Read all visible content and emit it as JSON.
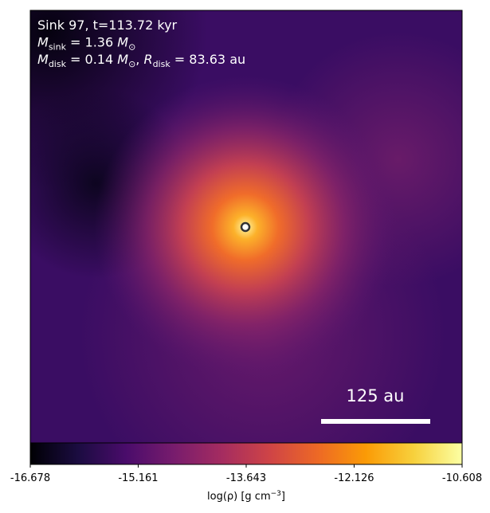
{
  "chart_data": {
    "type": "image",
    "annotations": [
      [
        {
          "text": "Sink 97, t=113.72 kyr"
        }
      ],
      [
        {
          "text": "M",
          "sub": "sink"
        },
        {
          "text": " = 1.36 "
        },
        {
          "text": "M",
          "sub": "⊙"
        }
      ],
      [
        {
          "text": "M",
          "sub": "disk"
        },
        {
          "text": " = 0.14 "
        },
        {
          "text": "M",
          "sub": "⊙"
        },
        {
          "text": ", "
        },
        {
          "text": "R",
          "sub": "disk"
        },
        {
          "text": " = 83.63 au"
        }
      ]
    ],
    "scale_bar": {
      "label": "125 au"
    },
    "colorbar": {
      "label": [
        {
          "text": "log(ρ) [g cm"
        },
        {
          "sup": "−3"
        },
        {
          "text": "]"
        }
      ],
      "lim": [
        -16.678,
        -10.608
      ],
      "ticks": [
        -16.678,
        -15.161,
        -13.643,
        -12.126,
        -10.608
      ],
      "colors": [
        "#000004",
        "#1b0c41",
        "#4a0c6b",
        "#781c6d",
        "#a52c60",
        "#cf4446",
        "#ed6925",
        "#fb9b06",
        "#f7d13d",
        "#fcffa4"
      ]
    }
  }
}
